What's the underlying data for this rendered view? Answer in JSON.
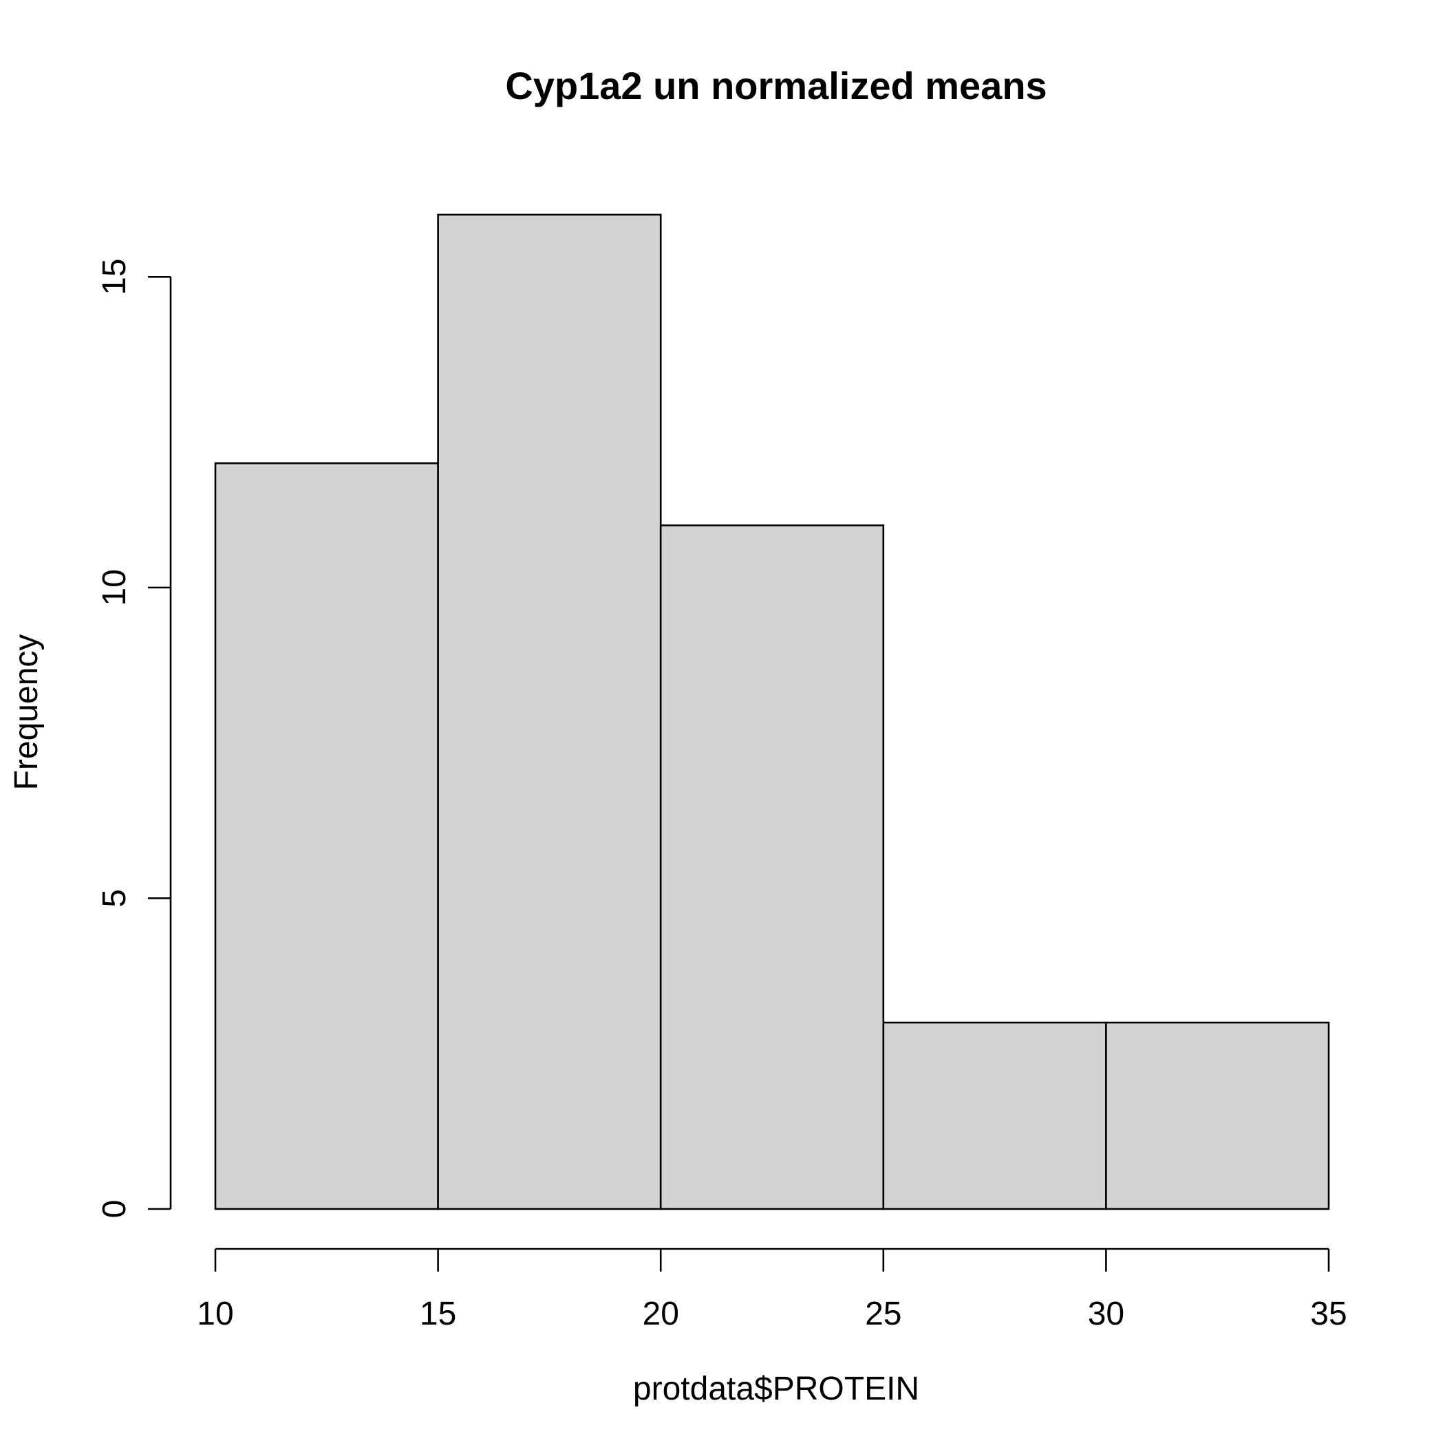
{
  "chart_data": {
    "type": "bar",
    "subtype": "histogram",
    "title": "Cyp1a2 un normalized means",
    "xlabel": "protdata$PROTEIN",
    "ylabel": "Frequency",
    "bins": [
      {
        "start": 10,
        "end": 15,
        "count": 12
      },
      {
        "start": 15,
        "end": 20,
        "count": 16
      },
      {
        "start": 20,
        "end": 25,
        "count": 11
      },
      {
        "start": 25,
        "end": 30,
        "count": 3
      },
      {
        "start": 30,
        "end": 35,
        "count": 3
      }
    ],
    "x_ticks": [
      "10",
      "15",
      "20",
      "25",
      "30",
      "35"
    ],
    "y_ticks": [
      "0",
      "5",
      "10",
      "15"
    ],
    "xlim": [
      10,
      35
    ],
    "ylim": [
      0,
      16
    ],
    "grid": false,
    "bar_color": "#d3d3d3",
    "bar_edge_color": "#000000"
  }
}
